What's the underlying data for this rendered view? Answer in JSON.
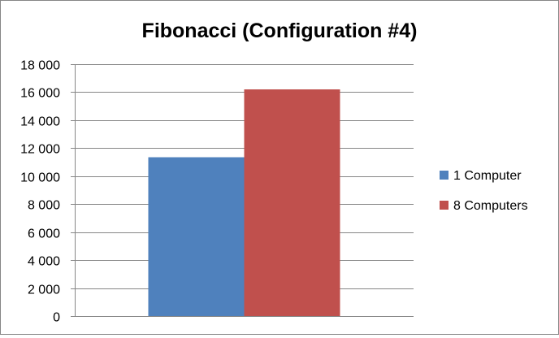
{
  "chart_data": {
    "type": "bar",
    "title": "Fibonacci (Configuration #4)",
    "xlabel": "",
    "ylabel": "",
    "categories": [
      ""
    ],
    "ylim": [
      0,
      18000
    ],
    "yticks": [
      0,
      2000,
      4000,
      6000,
      8000,
      10000,
      12000,
      14000,
      16000,
      18000
    ],
    "ytick_labels": [
      "0",
      "2 000",
      "4 000",
      "6 000",
      "8 000",
      "10 000",
      "12 000",
      "14 000",
      "16 000",
      "18 000"
    ],
    "grid": true,
    "legend_position": "right",
    "series": [
      {
        "name": "1 Computer",
        "values": [
          11350
        ],
        "color": "#4f81bd"
      },
      {
        "name": "8 Computers",
        "values": [
          16200
        ],
        "color": "#c0504d"
      }
    ]
  }
}
